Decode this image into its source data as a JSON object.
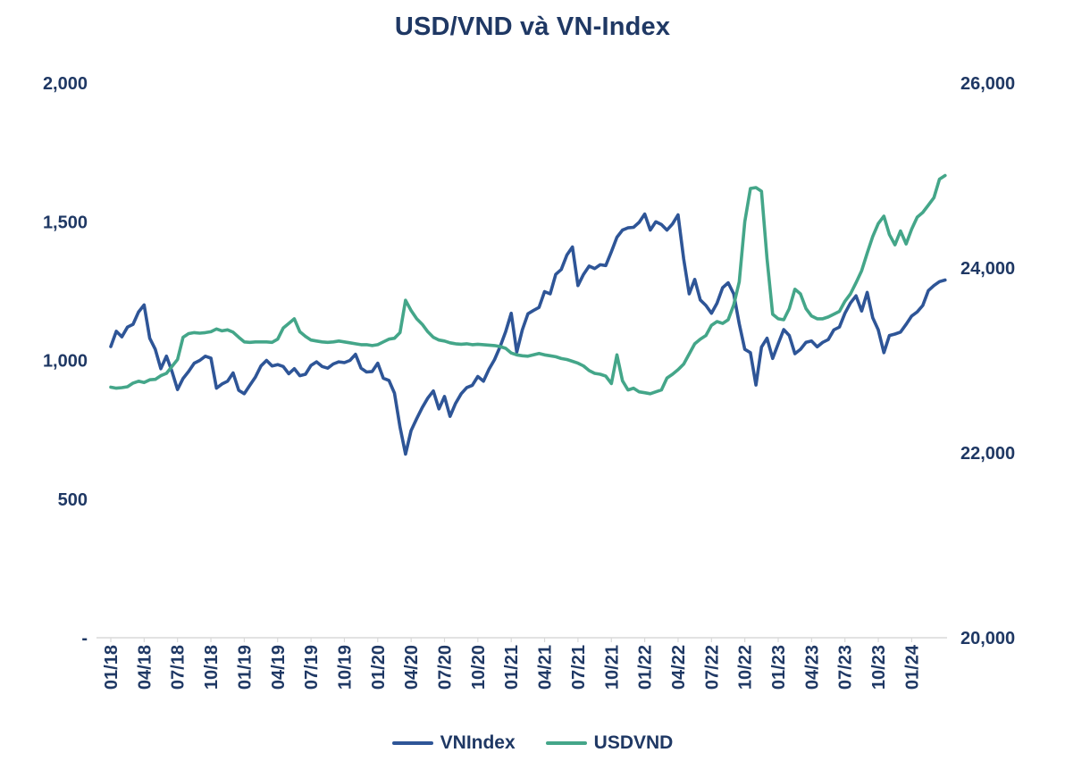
{
  "chart_data": {
    "type": "line",
    "title": "USD/VND và VN-Index",
    "legend_position": "bottom",
    "grid": false,
    "points_per_month": 2,
    "text_color": "#1F3864",
    "axis_color": "#D9D9D9",
    "x_tick_labels": [
      "01/18",
      "04/18",
      "07/18",
      "10/18",
      "01/19",
      "04/19",
      "07/19",
      "10/19",
      "01/20",
      "04/20",
      "07/20",
      "10/20",
      "01/21",
      "04/21",
      "07/21",
      "10/21",
      "01/22",
      "04/22",
      "07/22",
      "10/22",
      "01/23",
      "04/23",
      "07/23",
      "10/23",
      "01/24"
    ],
    "left_axis": {
      "series": "VNIndex",
      "min": 0,
      "max": 2000,
      "tick_values": [
        2000,
        1500,
        1000,
        500,
        0
      ],
      "tick_labels": [
        "2,000",
        "1,500",
        "1,000",
        "500",
        "-"
      ]
    },
    "right_axis": {
      "series": "USDVND",
      "min": 20000,
      "max": 26000,
      "tick_values": [
        26000,
        24000,
        22000,
        20000
      ],
      "tick_labels": [
        "26,000",
        "24,000",
        "22,000",
        "20,000"
      ]
    },
    "series": [
      {
        "name": "VNIndex",
        "axis": "left",
        "color": "#2E5597",
        "values": [
          1050,
          1105,
          1085,
          1120,
          1130,
          1175,
          1200,
          1080,
          1040,
          970,
          1015,
          960,
          895,
          935,
          960,
          990,
          1000,
          1015,
          1008,
          900,
          915,
          925,
          955,
          892,
          880,
          910,
          940,
          980,
          1000,
          980,
          985,
          978,
          952,
          970,
          945,
          950,
          982,
          995,
          978,
          972,
          987,
          995,
          992,
          1000,
          1022,
          972,
          958,
          960,
          990,
          936,
          928,
          882,
          760,
          662,
          747,
          790,
          830,
          864,
          890,
          825,
          870,
          798,
          845,
          880,
          902,
          910,
          942,
          925,
          968,
          1003,
          1050,
          1104,
          1170,
          1030,
          1110,
          1168,
          1180,
          1191,
          1248,
          1240,
          1310,
          1328,
          1380,
          1409,
          1270,
          1310,
          1340,
          1331,
          1345,
          1342,
          1392,
          1444,
          1470,
          1478,
          1480,
          1498,
          1528,
          1470,
          1500,
          1490,
          1470,
          1492,
          1525,
          1366,
          1240,
          1292,
          1218,
          1198,
          1170,
          1206,
          1262,
          1280,
          1240,
          1132,
          1040,
          1028,
          911,
          1048,
          1080,
          1007,
          1060,
          1111,
          1090,
          1024,
          1040,
          1065,
          1070,
          1049,
          1065,
          1075,
          1110,
          1120,
          1170,
          1207,
          1233,
          1178,
          1245,
          1154,
          1110,
          1028,
          1090,
          1095,
          1102,
          1130,
          1160,
          1175,
          1198,
          1252,
          1270,
          1284,
          1290
        ]
      },
      {
        "name": "USDVND",
        "axis": "right",
        "color": "#44A689",
        "values": [
          22710,
          22700,
          22705,
          22715,
          22755,
          22775,
          22760,
          22790,
          22795,
          22835,
          22860,
          22935,
          23010,
          23250,
          23290,
          23300,
          23295,
          23300,
          23310,
          23340,
          23320,
          23330,
          23305,
          23250,
          23200,
          23195,
          23200,
          23200,
          23200,
          23195,
          23230,
          23350,
          23400,
          23450,
          23310,
          23260,
          23220,
          23210,
          23200,
          23195,
          23200,
          23210,
          23200,
          23190,
          23180,
          23170,
          23170,
          23160,
          23170,
          23200,
          23230,
          23240,
          23300,
          23650,
          23540,
          23450,
          23390,
          23310,
          23250,
          23220,
          23210,
          23190,
          23180,
          23175,
          23180,
          23170,
          23175,
          23170,
          23165,
          23160,
          23150,
          23130,
          23080,
          23060,
          23050,
          23045,
          23060,
          23075,
          23060,
          23050,
          23040,
          23020,
          23010,
          22990,
          22970,
          22940,
          22890,
          22860,
          22850,
          22830,
          22750,
          23060,
          22780,
          22680,
          22700,
          22660,
          22650,
          22640,
          22660,
          22680,
          22810,
          22850,
          22900,
          22960,
          23070,
          23180,
          23230,
          23270,
          23380,
          23420,
          23400,
          23440,
          23600,
          23850,
          24500,
          24860,
          24870,
          24830,
          24100,
          23500,
          23450,
          23440,
          23560,
          23770,
          23720,
          23560,
          23480,
          23450,
          23450,
          23470,
          23500,
          23530,
          23640,
          23720,
          23840,
          23970,
          24160,
          24340,
          24480,
          24560,
          24360,
          24250,
          24400,
          24260,
          24420,
          24550,
          24600,
          24680,
          24760,
          24960,
          25000
        ]
      }
    ]
  }
}
